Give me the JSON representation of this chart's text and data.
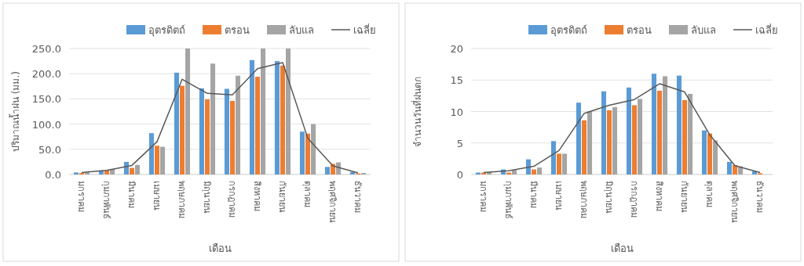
{
  "chart_data": [
    {
      "type": "bar",
      "xlabel": "เดือน",
      "ylabel": "ปริมาณน้ำฝน (มม.)",
      "categories": [
        "มกราคม",
        "กุมภาพันธ์",
        "มีนาคม",
        "เมษายน",
        "พฤษภาคม",
        "มิถุนายน",
        "กรกฎาคม",
        "สิงหาคม",
        "กันยายน",
        "ตุลาคม",
        "พฤศจิกายน",
        "ธันวาคม"
      ],
      "series": [
        {
          "name": "อุตรดิตถ์",
          "color": "#5b9bd5",
          "values": [
            4,
            8,
            25,
            82,
            202,
            171,
            170,
            227,
            225,
            85,
            15,
            5
          ]
        },
        {
          "name": "ตรอน",
          "color": "#ed7d31",
          "values": [
            3,
            8,
            13,
            57,
            176,
            149,
            146,
            194,
            216,
            81,
            21,
            2
          ]
        },
        {
          "name": "ลับแล",
          "color": "#a5a5a5",
          "values": [
            4,
            11,
            19,
            55,
            250,
            220,
            196,
            250,
            250,
            100,
            24,
            3
          ]
        },
        {
          "name": "เฉลี่ย",
          "color": "#595959",
          "type": "line",
          "values": [
            4,
            8,
            18,
            65,
            189,
            161,
            158,
            210,
            222,
            72,
            17,
            3
          ]
        }
      ],
      "ylim": [
        0,
        250
      ],
      "yticks": [
        {
          "value": 0,
          "label": "0.0"
        },
        {
          "value": 50,
          "label": "50.0"
        },
        {
          "value": 100,
          "label": "100.0"
        },
        {
          "value": 150,
          "label": "150.0"
        },
        {
          "value": 200,
          "label": "200.0"
        },
        {
          "value": 250,
          "label": "250.0"
        }
      ],
      "grid": "y",
      "legend": "top"
    },
    {
      "type": "bar",
      "xlabel": "เดือน",
      "ylabel": "จำนวนวันที่ฝนตก",
      "categories": [
        "มกราคม",
        "กุมภาพันธ์",
        "มีนาคม",
        "เมษายน",
        "พฤษภาคม",
        "มิถุนายน",
        "กรกฎาคม",
        "สิงหาคม",
        "กันยายน",
        "ตุลาคม",
        "พฤศจิกายน",
        "ธันวาคม"
      ],
      "series": [
        {
          "name": "อุตรดิตถ์",
          "color": "#5b9bd5",
          "values": [
            0.3,
            0.8,
            2.4,
            5.3,
            11.4,
            13.2,
            13.8,
            16.0,
            15.7,
            7.0,
            2.0,
            0.5
          ]
        },
        {
          "name": "ตรอน",
          "color": "#ed7d31",
          "values": [
            0.3,
            0.3,
            0.8,
            3.3,
            8.6,
            10.2,
            11.0,
            13.3,
            11.8,
            6.5,
            1.5,
            0.2
          ]
        },
        {
          "name": "ลับแล",
          "color": "#a5a5a5",
          "values": [
            0.4,
            0.7,
            1.1,
            3.3,
            10.0,
            10.7,
            12.0,
            15.6,
            12.8,
            5.4,
            1.3,
            null
          ]
        },
        {
          "name": "เฉลี่ย",
          "color": "#595959",
          "type": "line",
          "values": [
            0.3,
            0.6,
            1.3,
            3.8,
            9.7,
            11.0,
            11.9,
            14.4,
            13.1,
            6.3,
            1.4,
            0.3
          ]
        }
      ],
      "ylim": [
        0,
        20
      ],
      "yticks": [
        0,
        5,
        10,
        15,
        20
      ],
      "grid": "y",
      "legend": "top"
    }
  ]
}
